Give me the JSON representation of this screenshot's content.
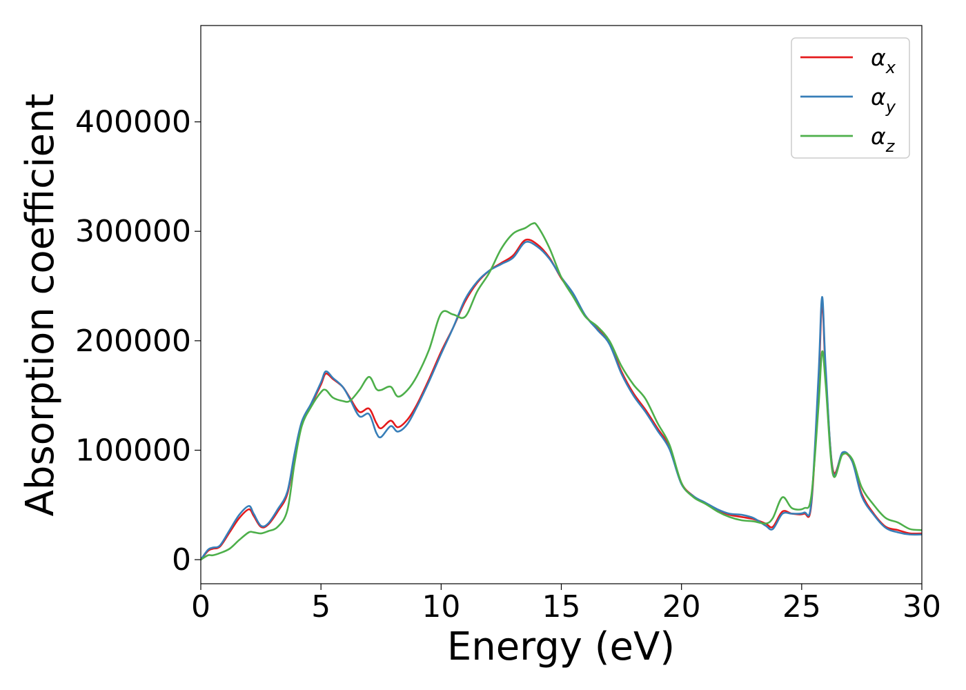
{
  "chart_data": {
    "type": "line",
    "title": "",
    "xlabel": "Energy (eV)",
    "ylabel": "Absorption coefficient",
    "xlim": [
      0,
      30
    ],
    "ylim": [
      -22000,
      488000
    ],
    "xticks": [
      0,
      5,
      10,
      15,
      20,
      25,
      30
    ],
    "yticks": [
      0,
      100000,
      200000,
      300000,
      400000
    ],
    "grid": false,
    "legend_position": "top-right",
    "series": [
      {
        "name": "αx",
        "legend_base": "α",
        "legend_sub": "x",
        "color": "#e41a1c",
        "points": [
          [
            0,
            0
          ],
          [
            0.3,
            8000
          ],
          [
            0.5,
            10000
          ],
          [
            0.8,
            12000
          ],
          [
            1.2,
            25000
          ],
          [
            1.6,
            38000
          ],
          [
            2.0,
            46000
          ],
          [
            2.2,
            40000
          ],
          [
            2.5,
            30000
          ],
          [
            2.8,
            32000
          ],
          [
            3.2,
            44000
          ],
          [
            3.6,
            60000
          ],
          [
            3.9,
            95000
          ],
          [
            4.2,
            125000
          ],
          [
            4.6,
            142000
          ],
          [
            5.0,
            160000
          ],
          [
            5.2,
            170000
          ],
          [
            5.5,
            165000
          ],
          [
            5.9,
            158000
          ],
          [
            6.2,
            148000
          ],
          [
            6.6,
            135000
          ],
          [
            7.0,
            138000
          ],
          [
            7.3,
            125000
          ],
          [
            7.5,
            120000
          ],
          [
            7.9,
            127000
          ],
          [
            8.2,
            121000
          ],
          [
            8.6,
            128000
          ],
          [
            9.0,
            142000
          ],
          [
            9.5,
            165000
          ],
          [
            10.0,
            190000
          ],
          [
            10.5,
            212000
          ],
          [
            11.0,
            236000
          ],
          [
            11.5,
            253000
          ],
          [
            12.0,
            264000
          ],
          [
            12.5,
            271000
          ],
          [
            13.0,
            278000
          ],
          [
            13.5,
            292000
          ],
          [
            14.0,
            288000
          ],
          [
            14.5,
            276000
          ],
          [
            15.0,
            257000
          ],
          [
            15.5,
            242000
          ],
          [
            16.0,
            223000
          ],
          [
            16.5,
            211000
          ],
          [
            17.0,
            198000
          ],
          [
            17.5,
            172000
          ],
          [
            18.0,
            152000
          ],
          [
            18.5,
            137000
          ],
          [
            19.0,
            120000
          ],
          [
            19.5,
            103000
          ],
          [
            20.0,
            70000
          ],
          [
            20.5,
            58000
          ],
          [
            21.0,
            51000
          ],
          [
            21.5,
            45000
          ],
          [
            22.0,
            41000
          ],
          [
            22.5,
            39000
          ],
          [
            23.0,
            37000
          ],
          [
            23.5,
            33000
          ],
          [
            23.8,
            30000
          ],
          [
            24.2,
            44000
          ],
          [
            24.6,
            42000
          ],
          [
            25.1,
            42000
          ],
          [
            25.4,
            50000
          ],
          [
            25.7,
            160000
          ],
          [
            25.85,
            235000
          ],
          [
            26.0,
            170000
          ],
          [
            26.3,
            82000
          ],
          [
            26.7,
            97000
          ],
          [
            27.1,
            90000
          ],
          [
            27.5,
            60000
          ],
          [
            28.0,
            42000
          ],
          [
            28.5,
            30000
          ],
          [
            29.0,
            27000
          ],
          [
            29.5,
            24000
          ],
          [
            30.0,
            24000
          ]
        ]
      },
      {
        "name": "αy",
        "legend_base": "α",
        "legend_sub": "y",
        "color": "#377eb8",
        "points": [
          [
            0,
            0
          ],
          [
            0.3,
            9000
          ],
          [
            0.5,
            11000
          ],
          [
            0.8,
            13000
          ],
          [
            1.2,
            27000
          ],
          [
            1.6,
            41000
          ],
          [
            2.0,
            49000
          ],
          [
            2.2,
            42000
          ],
          [
            2.5,
            31000
          ],
          [
            2.8,
            33000
          ],
          [
            3.2,
            46000
          ],
          [
            3.6,
            62000
          ],
          [
            3.9,
            97000
          ],
          [
            4.2,
            126000
          ],
          [
            4.6,
            143000
          ],
          [
            5.0,
            162000
          ],
          [
            5.2,
            172000
          ],
          [
            5.5,
            166000
          ],
          [
            5.9,
            158000
          ],
          [
            6.2,
            147000
          ],
          [
            6.6,
            131000
          ],
          [
            7.0,
            133000
          ],
          [
            7.3,
            116000
          ],
          [
            7.5,
            112000
          ],
          [
            7.9,
            122000
          ],
          [
            8.2,
            117000
          ],
          [
            8.6,
            124000
          ],
          [
            9.0,
            140000
          ],
          [
            9.5,
            163000
          ],
          [
            10.0,
            188000
          ],
          [
            10.5,
            212000
          ],
          [
            11.0,
            238000
          ],
          [
            11.5,
            254000
          ],
          [
            12.0,
            264000
          ],
          [
            12.5,
            270000
          ],
          [
            13.0,
            276000
          ],
          [
            13.5,
            290000
          ],
          [
            14.0,
            286000
          ],
          [
            14.5,
            275000
          ],
          [
            15.0,
            258000
          ],
          [
            15.5,
            243000
          ],
          [
            16.0,
            223000
          ],
          [
            16.5,
            210000
          ],
          [
            17.0,
            197000
          ],
          [
            17.5,
            170000
          ],
          [
            18.0,
            150000
          ],
          [
            18.5,
            135000
          ],
          [
            19.0,
            118000
          ],
          [
            19.5,
            101000
          ],
          [
            20.0,
            69000
          ],
          [
            20.5,
            58000
          ],
          [
            21.0,
            52000
          ],
          [
            21.5,
            46000
          ],
          [
            22.0,
            42000
          ],
          [
            22.5,
            41000
          ],
          [
            23.0,
            38000
          ],
          [
            23.5,
            31000
          ],
          [
            23.8,
            28000
          ],
          [
            24.2,
            42000
          ],
          [
            24.6,
            42000
          ],
          [
            25.1,
            43000
          ],
          [
            25.4,
            52000
          ],
          [
            25.7,
            168000
          ],
          [
            25.85,
            240000
          ],
          [
            26.0,
            175000
          ],
          [
            26.3,
            80000
          ],
          [
            26.7,
            98000
          ],
          [
            27.1,
            90000
          ],
          [
            27.5,
            58000
          ],
          [
            28.0,
            41000
          ],
          [
            28.5,
            29000
          ],
          [
            29.0,
            25000
          ],
          [
            29.5,
            23000
          ],
          [
            30.0,
            23000
          ]
        ]
      },
      {
        "name": "αz",
        "legend_base": "α",
        "legend_sub": "z",
        "color": "#4daf4a",
        "points": [
          [
            0,
            0
          ],
          [
            0.3,
            4000
          ],
          [
            0.5,
            4000
          ],
          [
            0.8,
            6000
          ],
          [
            1.2,
            10000
          ],
          [
            1.6,
            18000
          ],
          [
            2.0,
            25000
          ],
          [
            2.2,
            25000
          ],
          [
            2.5,
            24000
          ],
          [
            2.8,
            26000
          ],
          [
            3.2,
            30000
          ],
          [
            3.6,
            45000
          ],
          [
            3.9,
            88000
          ],
          [
            4.2,
            122000
          ],
          [
            4.6,
            140000
          ],
          [
            5.0,
            153000
          ],
          [
            5.2,
            155000
          ],
          [
            5.5,
            148000
          ],
          [
            5.9,
            145000
          ],
          [
            6.2,
            145000
          ],
          [
            6.6,
            155000
          ],
          [
            7.0,
            167000
          ],
          [
            7.3,
            156000
          ],
          [
            7.5,
            155000
          ],
          [
            7.9,
            158000
          ],
          [
            8.2,
            149000
          ],
          [
            8.6,
            155000
          ],
          [
            9.0,
            168000
          ],
          [
            9.5,
            192000
          ],
          [
            10.0,
            225000
          ],
          [
            10.5,
            224000
          ],
          [
            11.0,
            222000
          ],
          [
            11.5,
            245000
          ],
          [
            12.0,
            262000
          ],
          [
            12.5,
            284000
          ],
          [
            13.0,
            298000
          ],
          [
            13.5,
            303000
          ],
          [
            13.8,
            307000
          ],
          [
            14.0,
            305000
          ],
          [
            14.5,
            285000
          ],
          [
            15.0,
            258000
          ],
          [
            15.5,
            240000
          ],
          [
            16.0,
            222000
          ],
          [
            16.5,
            213000
          ],
          [
            17.0,
            200000
          ],
          [
            17.5,
            177000
          ],
          [
            18.0,
            160000
          ],
          [
            18.5,
            147000
          ],
          [
            19.0,
            125000
          ],
          [
            19.5,
            105000
          ],
          [
            20.0,
            70000
          ],
          [
            20.5,
            57000
          ],
          [
            21.0,
            51000
          ],
          [
            21.5,
            44000
          ],
          [
            22.0,
            39000
          ],
          [
            22.5,
            36000
          ],
          [
            23.0,
            35000
          ],
          [
            23.5,
            33000
          ],
          [
            23.8,
            38000
          ],
          [
            24.2,
            57000
          ],
          [
            24.6,
            47000
          ],
          [
            25.1,
            47000
          ],
          [
            25.4,
            58000
          ],
          [
            25.7,
            140000
          ],
          [
            25.85,
            190000
          ],
          [
            26.0,
            160000
          ],
          [
            26.3,
            78000
          ],
          [
            26.7,
            96000
          ],
          [
            27.1,
            92000
          ],
          [
            27.5,
            66000
          ],
          [
            28.0,
            50000
          ],
          [
            28.5,
            38000
          ],
          [
            29.0,
            34000
          ],
          [
            29.5,
            28000
          ],
          [
            30.0,
            27000
          ]
        ]
      }
    ]
  }
}
